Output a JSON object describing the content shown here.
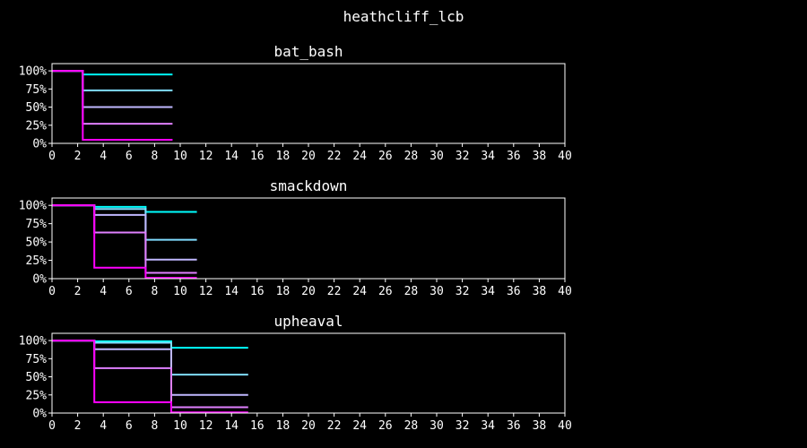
{
  "figure": {
    "title": "heathcliff_lcb"
  },
  "colors": [
    "#00ffff",
    "#80ddff",
    "#c0b8ff",
    "#e080ff",
    "#ff00ff"
  ],
  "chart_data": [
    {
      "type": "line",
      "step": true,
      "title": "bat_bash",
      "xlim": [
        0,
        40
      ],
      "ylim": [
        0,
        1.1
      ],
      "xticks": [
        0,
        2,
        4,
        6,
        8,
        10,
        12,
        14,
        16,
        18,
        20,
        22,
        24,
        26,
        28,
        30,
        32,
        34,
        36,
        38,
        40
      ],
      "yticks": [
        0,
        0.25,
        0.5,
        0.75,
        1.0
      ],
      "ytick_labels": [
        "0%",
        "25%",
        "50%",
        "75%",
        "100%"
      ],
      "grid": false,
      "series": [
        {
          "x": [
            0,
            2.4,
            9.4
          ],
          "y": [
            1.0,
            0.95,
            0.95
          ]
        },
        {
          "x": [
            0,
            2.4,
            9.4
          ],
          "y": [
            1.0,
            0.73,
            0.73
          ]
        },
        {
          "x": [
            0,
            2.4,
            9.4
          ],
          "y": [
            1.0,
            0.5,
            0.5
          ]
        },
        {
          "x": [
            0,
            2.4,
            9.4
          ],
          "y": [
            1.0,
            0.27,
            0.27
          ]
        },
        {
          "x": [
            0,
            2.4,
            9.4
          ],
          "y": [
            1.0,
            0.05,
            0.05
          ]
        }
      ]
    },
    {
      "type": "line",
      "step": true,
      "title": "smackdown",
      "xlim": [
        0,
        40
      ],
      "ylim": [
        0,
        1.1
      ],
      "xticks": [
        0,
        2,
        4,
        6,
        8,
        10,
        12,
        14,
        16,
        18,
        20,
        22,
        24,
        26,
        28,
        30,
        32,
        34,
        36,
        38,
        40
      ],
      "yticks": [
        0,
        0.25,
        0.5,
        0.75,
        1.0
      ],
      "ytick_labels": [
        "0%",
        "25%",
        "50%",
        "75%",
        "100%"
      ],
      "grid": false,
      "series": [
        {
          "x": [
            0,
            3.3,
            7.3,
            11.3
          ],
          "y": [
            1.0,
            0.98,
            0.91,
            0.91
          ]
        },
        {
          "x": [
            0,
            3.3,
            7.3,
            11.3
          ],
          "y": [
            1.0,
            0.95,
            0.53,
            0.53
          ]
        },
        {
          "x": [
            0,
            3.3,
            7.3,
            11.3
          ],
          "y": [
            1.0,
            0.87,
            0.26,
            0.26
          ]
        },
        {
          "x": [
            0,
            3.3,
            7.3,
            11.3
          ],
          "y": [
            1.0,
            0.63,
            0.08,
            0.08
          ]
        },
        {
          "x": [
            0,
            3.3,
            7.3,
            11.3
          ],
          "y": [
            1.0,
            0.15,
            0.01,
            0.01
          ]
        }
      ]
    },
    {
      "type": "line",
      "step": true,
      "title": "upheaval",
      "xlim": [
        0,
        40
      ],
      "ylim": [
        0,
        1.1
      ],
      "xticks": [
        0,
        2,
        4,
        6,
        8,
        10,
        12,
        14,
        16,
        18,
        20,
        22,
        24,
        26,
        28,
        30,
        32,
        34,
        36,
        38,
        40
      ],
      "yticks": [
        0,
        0.25,
        0.5,
        0.75,
        1.0
      ],
      "ytick_labels": [
        "0%",
        "25%",
        "50%",
        "75%",
        "100%"
      ],
      "grid": false,
      "series": [
        {
          "x": [
            0,
            3.3,
            9.3,
            15.3
          ],
          "y": [
            1.0,
            0.99,
            0.9,
            0.9
          ]
        },
        {
          "x": [
            0,
            3.3,
            9.3,
            15.3
          ],
          "y": [
            1.0,
            0.97,
            0.53,
            0.53
          ]
        },
        {
          "x": [
            0,
            3.3,
            9.3,
            15.3
          ],
          "y": [
            1.0,
            0.88,
            0.25,
            0.25
          ]
        },
        {
          "x": [
            0,
            3.3,
            9.3,
            15.3
          ],
          "y": [
            1.0,
            0.62,
            0.08,
            0.08
          ]
        },
        {
          "x": [
            0,
            3.3,
            9.3,
            15.3
          ],
          "y": [
            1.0,
            0.15,
            0.01,
            0.01
          ]
        }
      ]
    }
  ]
}
